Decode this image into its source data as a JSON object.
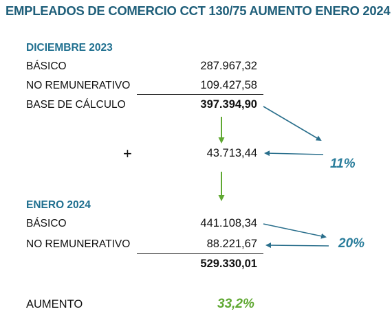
{
  "title": "EMPLEADOS DE COMERCIO CCT 130/75 AUMENTO ENERO 2024",
  "diciembre": {
    "heading": "DICIEMBRE 2023",
    "basico_label": "BÁSICO",
    "basico_value": "287.967,32",
    "no_rem_label": "NO REMUNERATIVO",
    "no_rem_value": "109.427,58",
    "base_label": "BASE DE CÁLCULO",
    "base_value": "397.394,90"
  },
  "increment": {
    "plus_sign": "+",
    "value": "43.713,44",
    "pct": "11%"
  },
  "enero": {
    "heading": "ENERO 2024",
    "basico_label": "BÁSICO",
    "basico_value": "441.108,34",
    "no_rem_label": "NO REMUNERATIVO",
    "no_rem_value": "88.221,67",
    "no_rem_pct": "20%",
    "total_value": "529.330,01"
  },
  "aumento": {
    "label": "AUMENTO",
    "value": "33,2%"
  },
  "colors": {
    "title": "#1f5f7a",
    "heading": "#1f6f8f",
    "arrow_blue": "#2a6f8c",
    "arrow_green": "#5fa832",
    "pct_blue": "#2a7d9b",
    "pct_green": "#5fa832"
  }
}
